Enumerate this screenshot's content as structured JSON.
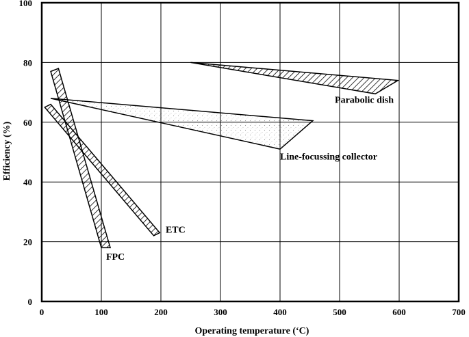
{
  "chart_data": {
    "type": "area",
    "title": "",
    "xlabel": "Operating temperature (‘C)",
    "ylabel": "Efficiency (%)",
    "xlim": [
      0,
      700
    ],
    "ylim": [
      0,
      100
    ],
    "x_ticks": [
      0,
      100,
      200,
      300,
      400,
      500,
      600,
      700
    ],
    "y_ticks": [
      0,
      20,
      40,
      60,
      80,
      100
    ],
    "grid": true,
    "legend": "none",
    "regions": [
      {
        "name": "FPC",
        "fill": "hatch",
        "polygon": [
          [
            15,
            77
          ],
          [
            28,
            78
          ],
          [
            115,
            18
          ],
          [
            100,
            18
          ]
        ],
        "label": {
          "x": 108,
          "y": 14
        }
      },
      {
        "name": "ETC",
        "fill": "hatch",
        "polygon": [
          [
            5,
            65
          ],
          [
            15,
            66
          ],
          [
            198,
            23
          ],
          [
            188,
            22
          ]
        ],
        "label": {
          "x": 208,
          "y": 23
        }
      },
      {
        "name": "Line-focussing collector",
        "fill": "stipple",
        "polygon": [
          [
            15,
            68
          ],
          [
            455,
            60.5
          ],
          [
            400,
            51
          ]
        ],
        "label": {
          "x": 400,
          "y": 47.5
        }
      },
      {
        "name": "Parabolic dish",
        "fill": "hatch",
        "polygon": [
          [
            250,
            80
          ],
          [
            598,
            74
          ],
          [
            560,
            69.5
          ]
        ],
        "label": {
          "x": 492,
          "y": 66.5
        }
      }
    ]
  }
}
